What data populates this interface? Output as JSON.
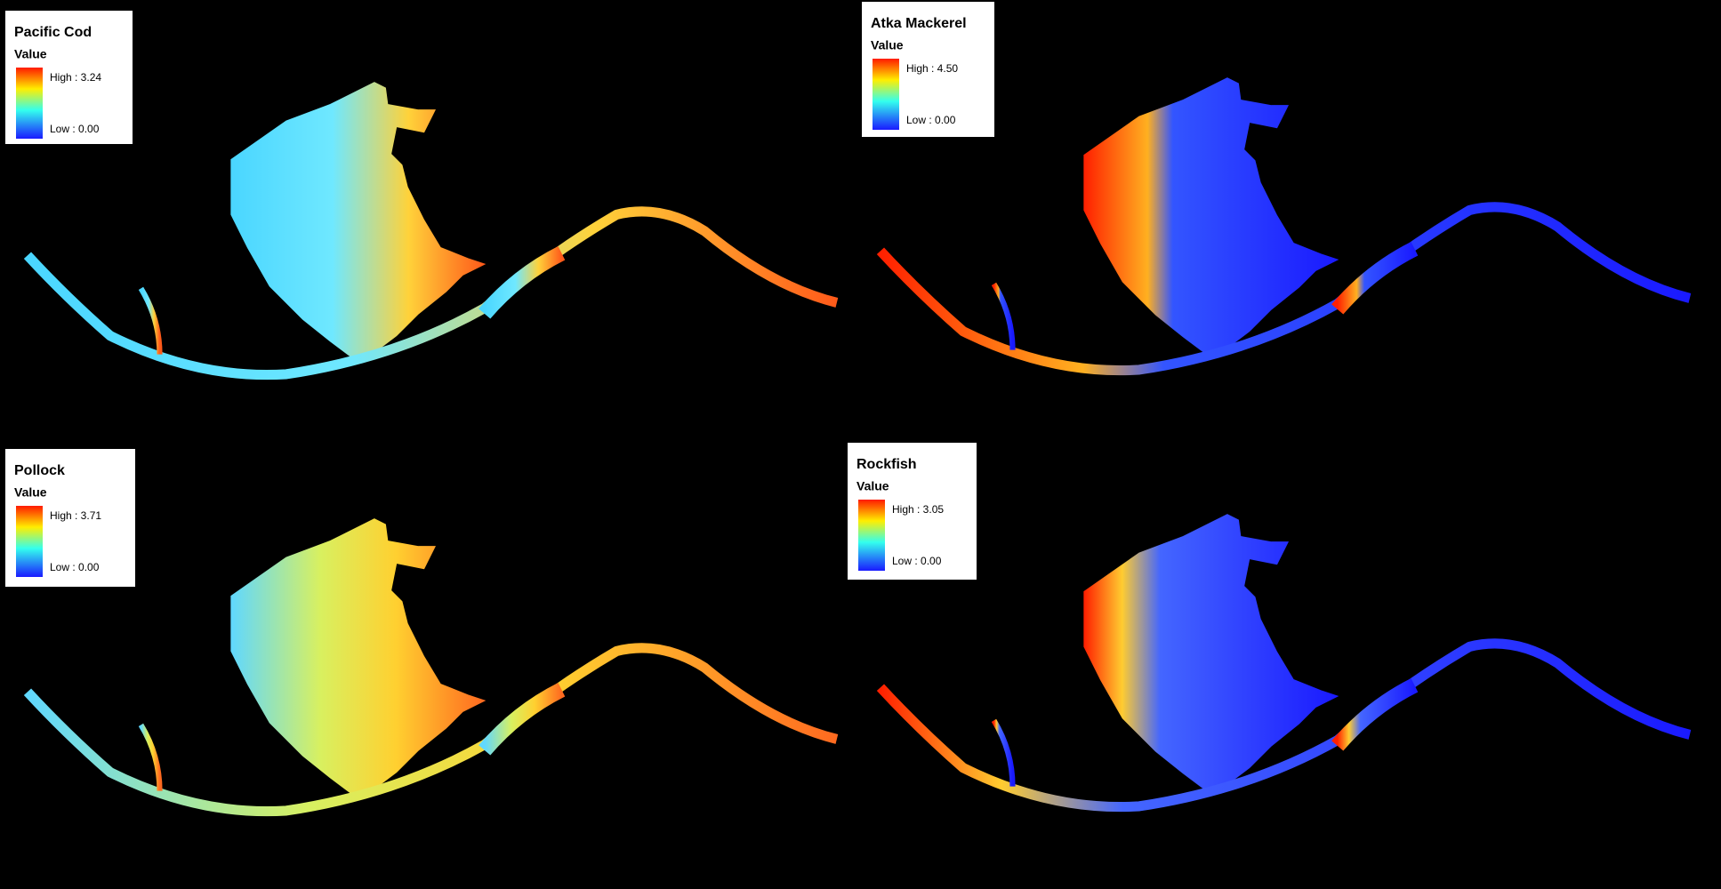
{
  "panels": [
    {
      "title": "Pacific Cod",
      "legend_title": "Value",
      "high": "High : 3.24",
      "low": "Low : 0.00"
    },
    {
      "title": "Atka Mackerel",
      "legend_title": "Value",
      "high": "High : 4.50",
      "low": "Low : 0.00"
    },
    {
      "title": "Pollock",
      "legend_title": "Value",
      "high": "High : 3.71",
      "low": "Low : 0.00"
    },
    {
      "title": "Rockfish",
      "legend_title": "Value",
      "high": "High : 3.05",
      "low": "Low : 0.00"
    }
  ]
}
